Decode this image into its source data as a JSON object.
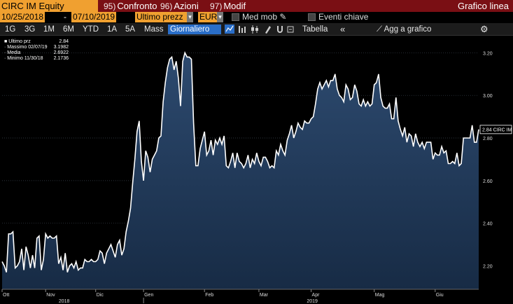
{
  "header": {
    "ticker": "CIRC IM Equity",
    "menu": [
      {
        "num": "95)",
        "label": "Confronto"
      },
      {
        "num": "96)",
        "label": "Azioni"
      },
      {
        "num": "97)",
        "label": "Modif"
      }
    ],
    "chart_type": "Grafico linea"
  },
  "filters": {
    "date_from": "10/25/2018",
    "dash": "-",
    "date_to": "07/10/2019",
    "price_field": "Ultimo prezz",
    "currency": "EUR",
    "med_mob": "Med mob",
    "eventi": "Eventi chiave"
  },
  "periods": {
    "items": [
      "1G",
      "3G",
      "1M",
      "6M",
      "YTD",
      "1A",
      "5A",
      "Mass"
    ],
    "interval": "Giornaliero",
    "tabella": "Tabella",
    "agg": "Agg a grafico"
  },
  "icons": {
    "ddarrow": "▾",
    "menu_arrows": "«",
    "pencil": "✎",
    "gear": "⚙",
    "chart_icons": [
      "line-chart-icon",
      "bar-chart-icon",
      "candle-chart-icon",
      "draw-icon",
      "magnet-icon",
      "settings-chart-icon"
    ]
  },
  "chart_data": {
    "type": "area",
    "title": "",
    "xlabel": "",
    "ylabel": "",
    "ylim": [
      2.09,
      3.28
    ],
    "yticks": [
      2.2,
      2.4,
      2.6,
      2.8,
      3.0,
      3.2
    ],
    "ytick_labels": [
      "2.20",
      "2.40",
      "2.60",
      "2.80",
      "3.00",
      "3.20"
    ],
    "xticks": [
      {
        "label": "Ott",
        "i": 0
      },
      {
        "label": "Nov",
        "i": 20
      },
      {
        "label": "Dic",
        "i": 43
      },
      {
        "label": "Gen",
        "i": 65
      },
      {
        "label": "Feb",
        "i": 93
      },
      {
        "label": "Mar",
        "i": 118
      },
      {
        "label": "Apr",
        "i": 142
      },
      {
        "label": "Mag",
        "i": 171
      },
      {
        "label": "Giu",
        "i": 199
      }
    ],
    "year_labels": [
      {
        "label": "2018",
        "i": 26
      },
      {
        "label": "2019",
        "i": 140
      }
    ],
    "values": [
      2.22,
      2.2,
      2.17,
      2.35,
      2.35,
      2.36,
      2.19,
      2.2,
      2.22,
      2.28,
      2.18,
      2.29,
      2.25,
      2.19,
      2.25,
      2.19,
      2.33,
      2.34,
      2.18,
      2.23,
      2.35,
      2.33,
      2.34,
      2.33,
      2.33,
      2.34,
      2.21,
      2.24,
      2.18,
      2.26,
      2.17,
      2.2,
      2.21,
      2.19,
      2.22,
      2.18,
      2.19,
      2.19,
      2.23,
      2.22,
      2.22,
      2.23,
      2.22,
      2.22,
      2.23,
      2.27,
      2.26,
      2.21,
      2.26,
      2.28,
      2.3,
      2.27,
      2.24,
      2.3,
      2.32,
      2.25,
      2.28,
      2.36,
      2.41,
      2.47,
      2.59,
      2.7,
      2.83,
      2.88,
      2.69,
      2.6,
      2.74,
      2.71,
      2.64,
      2.7,
      2.72,
      2.74,
      2.8,
      2.81,
      2.97,
      3.06,
      3.13,
      3.17,
      3.18,
      3.12,
      3.16,
      3.08,
      2.95,
      3.16,
      3.2,
      3.18,
      3.18,
      3.17,
      2.87,
      2.67,
      2.67,
      2.75,
      2.79,
      2.83,
      2.72,
      2.74,
      2.79,
      2.72,
      2.79,
      2.77,
      2.8,
      2.77,
      2.81,
      2.67,
      2.66,
      2.69,
      2.73,
      2.66,
      2.73,
      2.69,
      2.68,
      2.66,
      2.68,
      2.72,
      2.66,
      2.7,
      2.68,
      2.73,
      2.69,
      2.67,
      2.71,
      2.71,
      2.69,
      2.66,
      2.67,
      2.66,
      2.74,
      2.72,
      2.77,
      2.74,
      2.72,
      2.79,
      2.82,
      2.86,
      2.8,
      2.83,
      2.87,
      2.85,
      2.84,
      2.88,
      2.87,
      2.87,
      2.89,
      2.9,
      2.96,
      3.03,
      3.06,
      3.03,
      3.05,
      3.07,
      3.04,
      3.07,
      3.07,
      3.1,
      3.03,
      3.0,
      2.99,
      2.97,
      3.05,
      3.03,
      2.98,
      2.99,
      3.05,
      3.02,
      2.96,
      2.95,
      2.98,
      2.95,
      2.97,
      2.95,
      2.96,
      3.05,
      3.06,
      3.1,
      2.99,
      2.95,
      2.94,
      2.94,
      2.96,
      2.89,
      2.89,
      2.99,
      2.88,
      2.84,
      2.81,
      2.85,
      2.78,
      2.82,
      2.81,
      2.76,
      2.82,
      2.78,
      2.76,
      2.78,
      2.75,
      2.78,
      2.78,
      2.78,
      2.7,
      2.73,
      2.72,
      2.72,
      2.76,
      2.73,
      2.74,
      2.68,
      2.68,
      2.69,
      2.68,
      2.73,
      2.67,
      2.68,
      2.8,
      2.8,
      2.8,
      2.8,
      2.86,
      2.78,
      2.78,
      2.84
    ],
    "marker_value": "2.84",
    "marker_label": "CIRC IM",
    "legend": [
      {
        "label": "Ultimo prz",
        "value": "2.84"
      },
      {
        "label": "Massimo 02/07/19",
        "value": "3.1982"
      },
      {
        "label": "Media",
        "value": "2.6922"
      },
      {
        "label": "Minimo 11/30/18",
        "value": "2.1736"
      }
    ],
    "colors": {
      "line": "#ffffff",
      "fill_top": "#2d4a6f",
      "fill_bottom": "#172b45",
      "grid": "#3a4450"
    },
    "grid": true,
    "legend_position": "top-left"
  }
}
